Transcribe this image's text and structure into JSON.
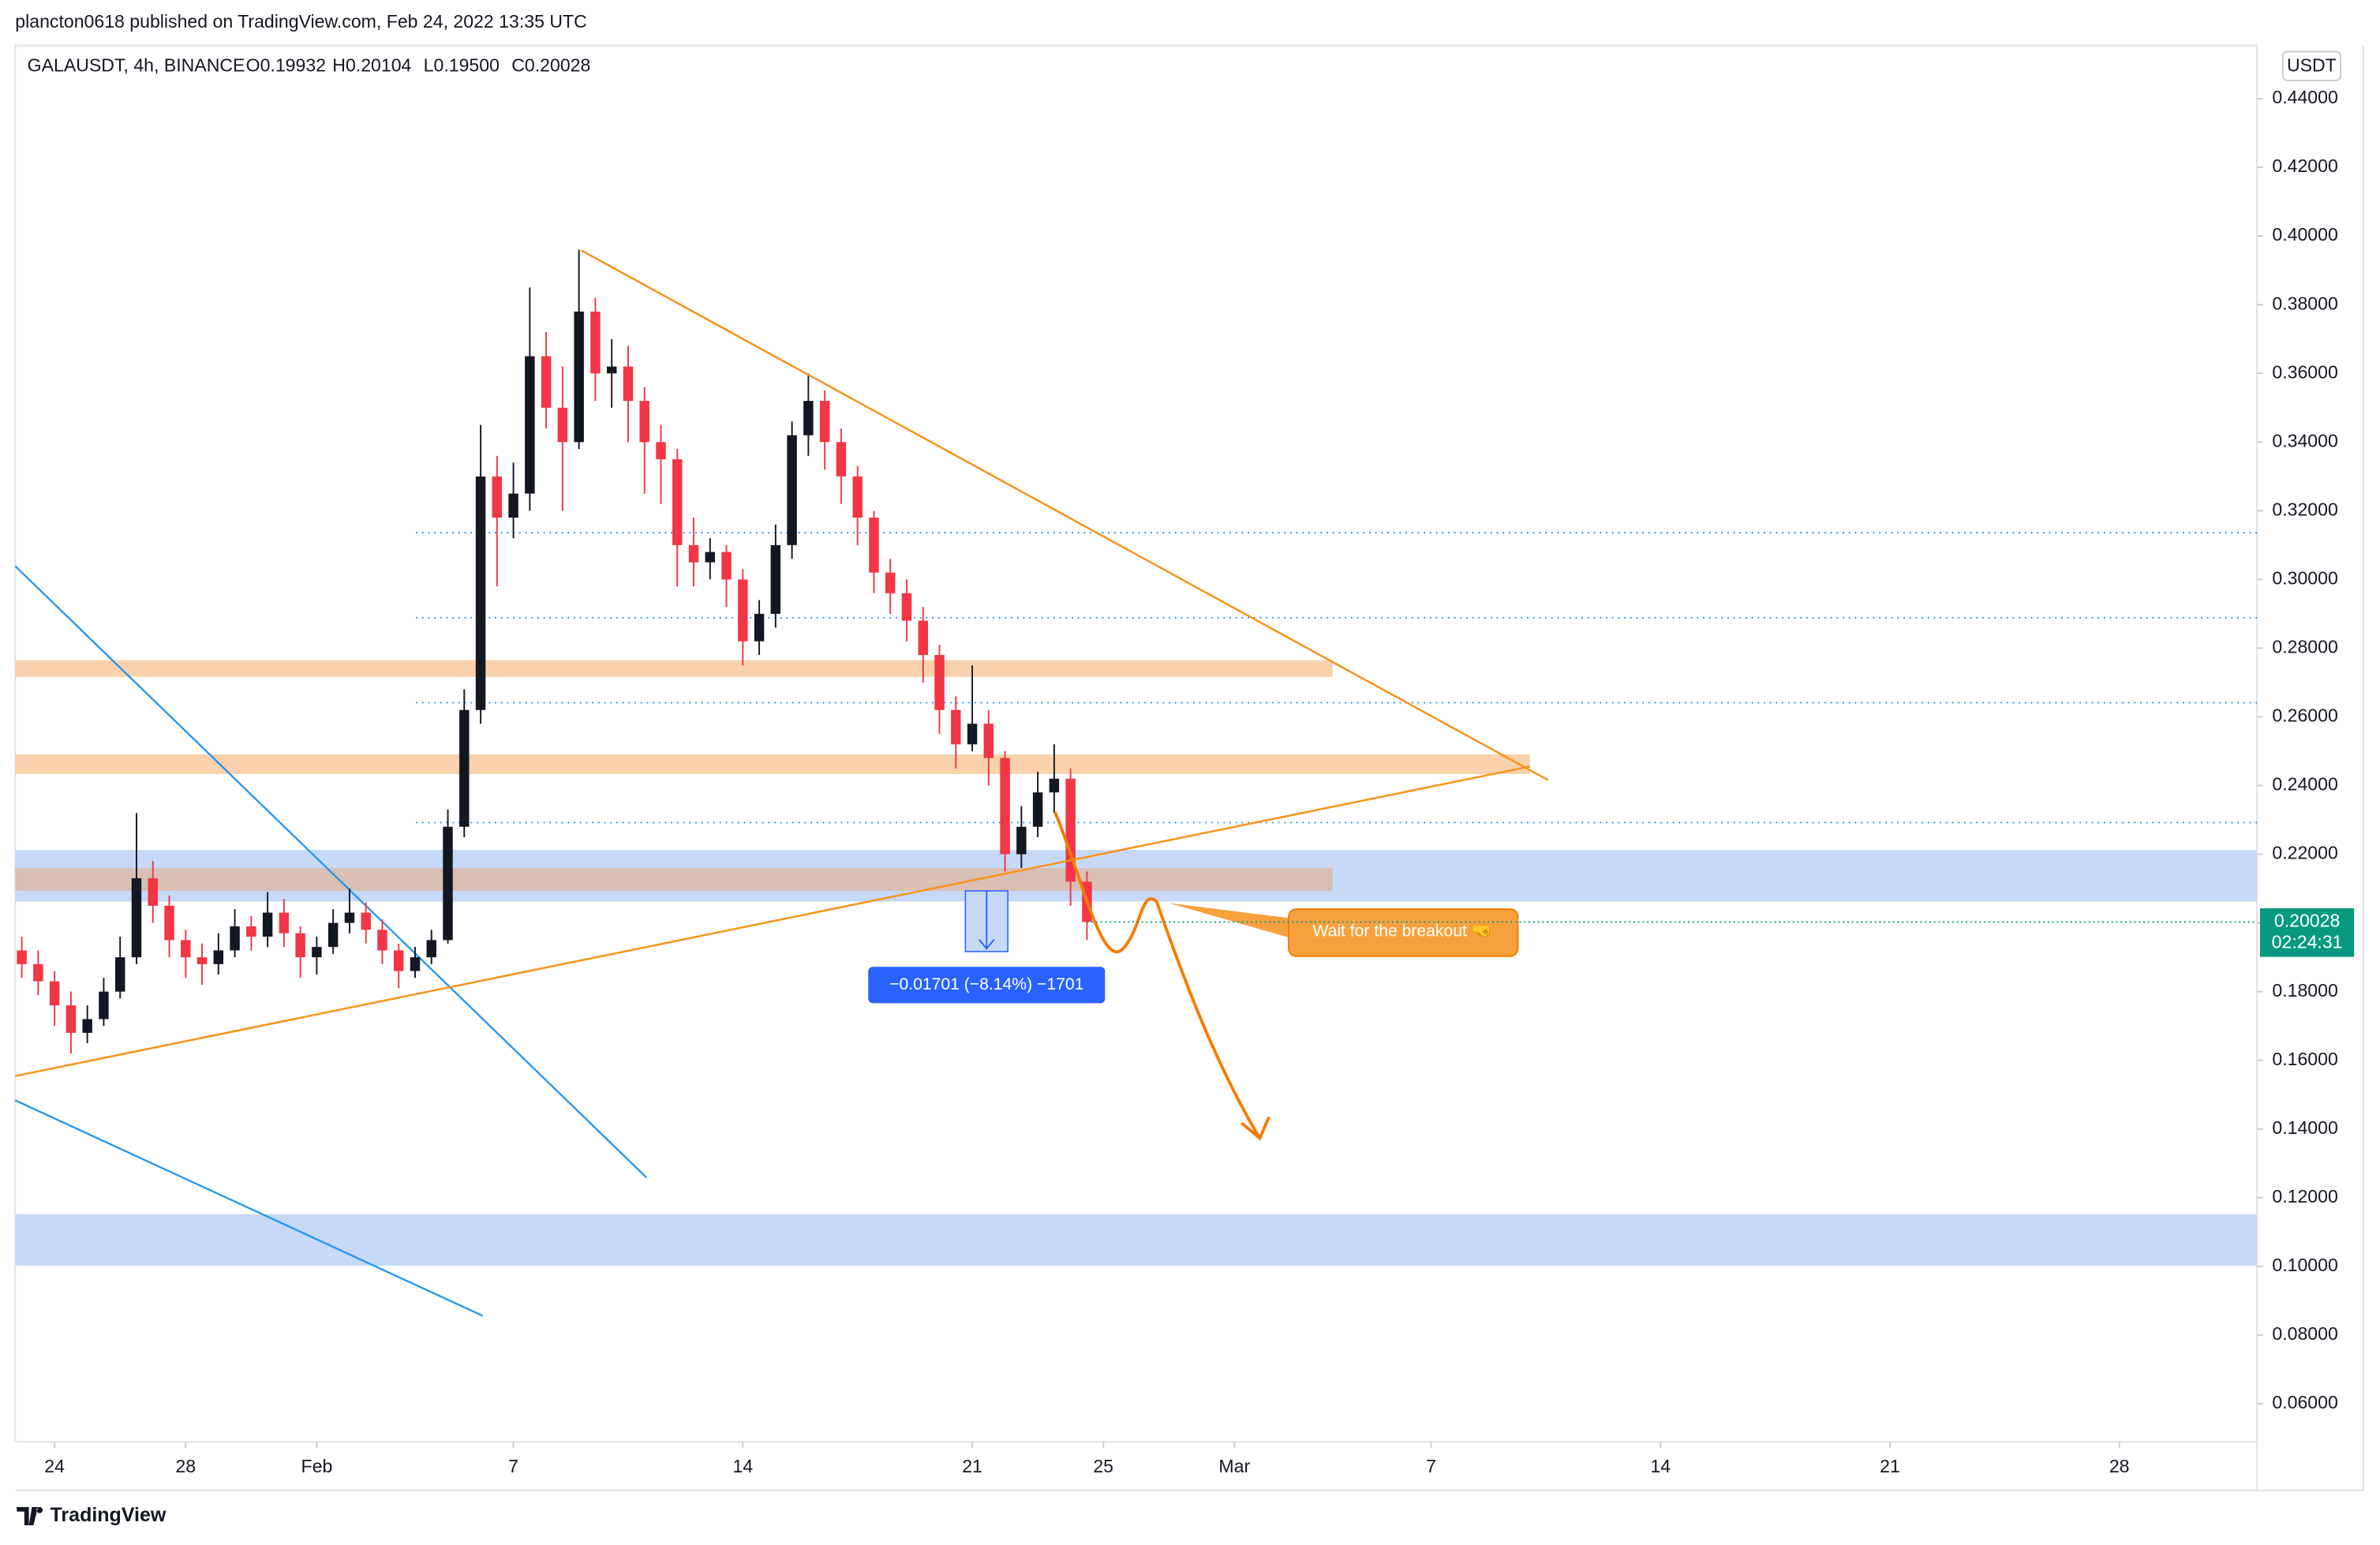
{
  "page": {
    "published": "plancton0618 published on TradingView.com, Feb 24, 2022 13:35 UTC",
    "symbol_info": "GALAUSDT, 4h, BINANCE",
    "ohlc_readout": [
      "O0.19932",
      "H0.20104",
      "L0.19500",
      "C0.20028"
    ],
    "currency": "USDT",
    "countdown": "02:24:31",
    "measure_label": "−0.01701 (−8.14%) −1701",
    "annotation": "Wait for the breakout 🤜",
    "brand": "TradingView"
  },
  "chart_data": {
    "type": "candlestick",
    "up_color": "#131722",
    "down_color": "#f23645",
    "last_price_color": "#089981",
    "xlim": [
      -1.2,
      67.2
    ],
    "ylim": [
      0.04892,
      0.45547
    ],
    "xticks": [
      {
        "value": 0,
        "label": "24"
      },
      {
        "value": 4,
        "label": "28"
      },
      {
        "value": 8,
        "label": "Feb"
      },
      {
        "value": 14,
        "label": "7"
      },
      {
        "value": 21,
        "label": "14"
      },
      {
        "value": 28,
        "label": "21"
      },
      {
        "value": 32,
        "label": "25"
      },
      {
        "value": 36,
        "label": "Mar"
      },
      {
        "value": 42,
        "label": "7"
      },
      {
        "value": 49,
        "label": "14"
      },
      {
        "value": 56,
        "label": "21"
      },
      {
        "value": 63,
        "label": "28"
      }
    ],
    "yticks": [
      {
        "value": 0.06,
        "label": "0.06000"
      },
      {
        "value": 0.08,
        "label": "0.08000"
      },
      {
        "value": 0.1,
        "label": "0.10000"
      },
      {
        "value": 0.12,
        "label": "0.12000"
      },
      {
        "value": 0.14,
        "label": "0.14000"
      },
      {
        "value": 0.16,
        "label": "0.16000"
      },
      {
        "value": 0.18,
        "label": "0.18000"
      },
      {
        "value": 0.2,
        "label": "0.20000"
      },
      {
        "value": 0.22,
        "label": "0.22000"
      },
      {
        "value": 0.24,
        "label": "0.24000"
      },
      {
        "value": 0.26,
        "label": "0.26000"
      },
      {
        "value": 0.28,
        "label": "0.28000"
      },
      {
        "value": 0.3,
        "label": "0.30000"
      },
      {
        "value": 0.32,
        "label": "0.32000"
      },
      {
        "value": 0.34,
        "label": "0.34000"
      },
      {
        "value": 0.36,
        "label": "0.36000"
      },
      {
        "value": 0.38,
        "label": "0.38000"
      },
      {
        "value": 0.4,
        "label": "0.40000"
      },
      {
        "value": 0.42,
        "label": "0.42000"
      },
      {
        "value": 0.44,
        "label": "0.44000"
      }
    ],
    "x": [
      -1,
      -0.5,
      0,
      0.5,
      1,
      1.5,
      2,
      2.5,
      3,
      3.5,
      4,
      4.5,
      5,
      5.5,
      6,
      6.5,
      7,
      7.5,
      8,
      8.5,
      9,
      9.5,
      10,
      10.5,
      11,
      11.5,
      12,
      12.5,
      13,
      13.5,
      14,
      14.5,
      15,
      15.5,
      16,
      16.5,
      17,
      17.5,
      18,
      18.5,
      19,
      19.5,
      20,
      20.5,
      21,
      21.5,
      22,
      22.5,
      23,
      23.5,
      24,
      24.5,
      25,
      25.5,
      26,
      26.5,
      27,
      27.5,
      28,
      28.5,
      29,
      29.5,
      30,
      30.5,
      31,
      31.5
    ],
    "open": [
      0.192,
      0.188,
      0.183,
      0.176,
      0.168,
      0.172,
      0.18,
      0.19,
      0.213,
      0.205,
      0.195,
      0.19,
      0.188,
      0.192,
      0.199,
      0.196,
      0.203,
      0.197,
      0.19,
      0.193,
      0.2,
      0.203,
      0.198,
      0.192,
      0.186,
      0.19,
      0.195,
      0.228,
      0.262,
      0.33,
      0.318,
      0.325,
      0.365,
      0.35,
      0.34,
      0.378,
      0.36,
      0.362,
      0.352,
      0.34,
      0.335,
      0.31,
      0.305,
      0.308,
      0.3,
      0.282,
      0.29,
      0.31,
      0.342,
      0.352,
      0.34,
      0.33,
      0.318,
      0.302,
      0.296,
      0.288,
      0.278,
      0.262,
      0.252,
      0.258,
      0.248,
      0.22,
      0.228,
      0.238,
      0.242,
      0.212
    ],
    "high": [
      0.196,
      0.192,
      0.186,
      0.18,
      0.176,
      0.184,
      0.196,
      0.232,
      0.218,
      0.208,
      0.198,
      0.194,
      0.197,
      0.204,
      0.202,
      0.209,
      0.207,
      0.199,
      0.196,
      0.204,
      0.21,
      0.206,
      0.201,
      0.194,
      0.193,
      0.198,
      0.233,
      0.268,
      0.345,
      0.336,
      0.334,
      0.385,
      0.372,
      0.362,
      0.396,
      0.382,
      0.37,
      0.368,
      0.356,
      0.345,
      0.338,
      0.318,
      0.312,
      0.31,
      0.303,
      0.294,
      0.316,
      0.346,
      0.36,
      0.355,
      0.344,
      0.333,
      0.32,
      0.306,
      0.3,
      0.292,
      0.281,
      0.266,
      0.275,
      0.262,
      0.25,
      0.234,
      0.244,
      0.252,
      0.245,
      0.215
    ],
    "low": [
      0.184,
      0.179,
      0.17,
      0.162,
      0.165,
      0.17,
      0.178,
      0.188,
      0.2,
      0.19,
      0.184,
      0.182,
      0.185,
      0.19,
      0.192,
      0.193,
      0.193,
      0.184,
      0.185,
      0.191,
      0.197,
      0.194,
      0.188,
      0.181,
      0.184,
      0.188,
      0.194,
      0.225,
      0.258,
      0.298,
      0.312,
      0.32,
      0.344,
      0.32,
      0.338,
      0.352,
      0.35,
      0.34,
      0.325,
      0.322,
      0.298,
      0.298,
      0.3,
      0.292,
      0.275,
      0.278,
      0.286,
      0.306,
      0.336,
      0.332,
      0.322,
      0.31,
      0.296,
      0.29,
      0.282,
      0.27,
      0.255,
      0.245,
      0.25,
      0.24,
      0.215,
      0.216,
      0.225,
      0.232,
      0.205,
      0.195
    ],
    "close": [
      0.188,
      0.183,
      0.176,
      0.168,
      0.172,
      0.18,
      0.19,
      0.213,
      0.205,
      0.195,
      0.19,
      0.188,
      0.192,
      0.199,
      0.196,
      0.203,
      0.197,
      0.19,
      0.193,
      0.2,
      0.203,
      0.198,
      0.192,
      0.186,
      0.19,
      0.195,
      0.228,
      0.262,
      0.33,
      0.318,
      0.325,
      0.365,
      0.35,
      0.34,
      0.378,
      0.36,
      0.362,
      0.352,
      0.34,
      0.335,
      0.31,
      0.305,
      0.308,
      0.3,
      0.282,
      0.29,
      0.31,
      0.342,
      0.352,
      0.34,
      0.33,
      0.318,
      0.302,
      0.296,
      0.288,
      0.278,
      0.262,
      0.252,
      0.258,
      0.248,
      0.22,
      0.228,
      0.238,
      0.242,
      0.212,
      0.20028
    ]
  }
}
